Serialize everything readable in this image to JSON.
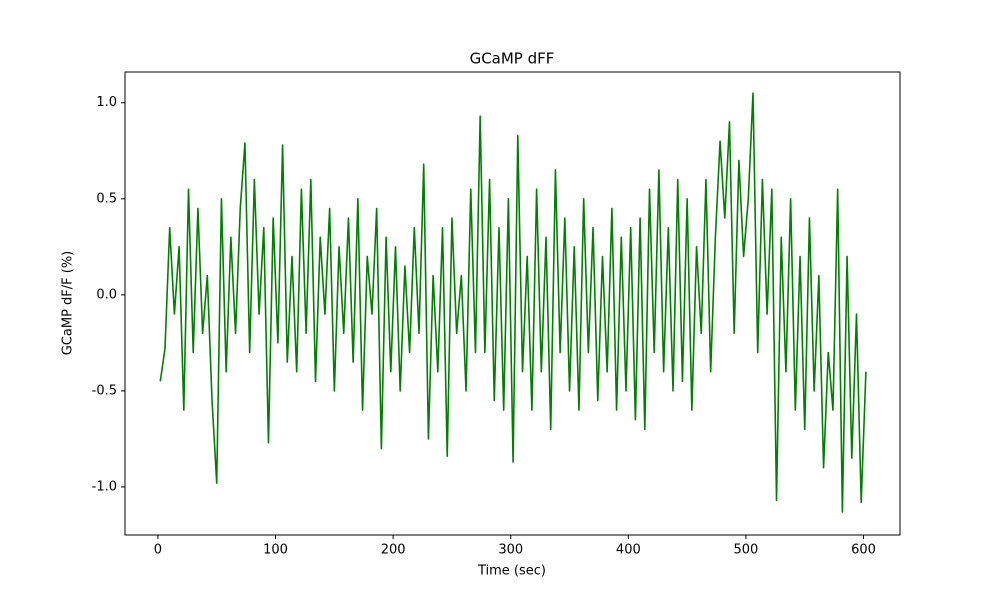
{
  "chart_data": {
    "type": "line",
    "title": "GCaMP dFF",
    "x_label": "Time (sec)",
    "y_label": "GCaMP dF/F (%)",
    "x": [
      2,
      6,
      10,
      14,
      18,
      22,
      26,
      30,
      34,
      38,
      42,
      46,
      50,
      54,
      58,
      62,
      66,
      70,
      74,
      78,
      82,
      86,
      90,
      94,
      98,
      102,
      106,
      110,
      114,
      118,
      122,
      126,
      130,
      134,
      138,
      142,
      146,
      150,
      154,
      158,
      162,
      166,
      170,
      174,
      178,
      182,
      186,
      190,
      194,
      198,
      202,
      206,
      210,
      214,
      218,
      222,
      226,
      230,
      234,
      238,
      242,
      246,
      250,
      254,
      258,
      262,
      266,
      270,
      274,
      278,
      282,
      286,
      290,
      294,
      298,
      302,
      306,
      310,
      314,
      318,
      322,
      326,
      330,
      334,
      338,
      342,
      346,
      350,
      354,
      358,
      362,
      366,
      370,
      374,
      378,
      382,
      386,
      390,
      394,
      398,
      402,
      406,
      410,
      414,
      418,
      422,
      426,
      430,
      434,
      438,
      442,
      446,
      450,
      454,
      458,
      462,
      466,
      470,
      474,
      478,
      482,
      486,
      490,
      494,
      498,
      502,
      506,
      510,
      514,
      518,
      522,
      526,
      530,
      534,
      538,
      542,
      546,
      550,
      554,
      558,
      562,
      566,
      570,
      574,
      578,
      582,
      586,
      590,
      594,
      598,
      602
    ],
    "series": [
      {
        "name": "GCaMP dFF",
        "color": "#008000",
        "values": [
          -0.45,
          -0.28,
          0.35,
          -0.1,
          0.25,
          -0.6,
          0.55,
          -0.3,
          0.45,
          -0.2,
          0.1,
          -0.55,
          -0.98,
          0.5,
          -0.4,
          0.3,
          -0.2,
          0.45,
          0.79,
          -0.3,
          0.6,
          -0.1,
          0.35,
          -0.77,
          0.4,
          -0.25,
          0.78,
          -0.35,
          0.2,
          -0.4,
          0.55,
          -0.2,
          0.6,
          -0.45,
          0.3,
          -0.1,
          0.45,
          -0.5,
          0.25,
          -0.2,
          0.4,
          -0.35,
          0.5,
          -0.6,
          0.2,
          -0.1,
          0.45,
          -0.8,
          0.3,
          -0.4,
          0.25,
          -0.5,
          0.15,
          -0.3,
          0.35,
          -0.2,
          0.68,
          -0.75,
          0.1,
          -0.4,
          0.35,
          -0.84,
          0.4,
          -0.2,
          0.1,
          -0.5,
          0.55,
          -0.3,
          0.93,
          -0.3,
          0.6,
          -0.55,
          0.35,
          -0.6,
          0.5,
          -0.87,
          0.83,
          -0.4,
          0.2,
          -0.6,
          0.55,
          -0.4,
          0.3,
          -0.7,
          0.65,
          -0.3,
          0.4,
          -0.5,
          0.25,
          -0.6,
          0.5,
          -0.3,
          0.35,
          -0.55,
          0.2,
          -0.4,
          0.45,
          -0.6,
          0.3,
          -0.5,
          0.35,
          -0.65,
          0.4,
          -0.7,
          0.55,
          -0.3,
          0.65,
          -0.4,
          0.35,
          -0.5,
          0.6,
          -0.45,
          0.5,
          -0.6,
          0.25,
          -0.2,
          0.6,
          -0.4,
          0.3,
          0.8,
          0.4,
          0.9,
          -0.2,
          0.7,
          0.2,
          0.5,
          1.05,
          -0.3,
          0.6,
          -0.1,
          0.55,
          -1.07,
          0.3,
          -0.4,
          0.5,
          -0.6,
          0.2,
          -0.7,
          0.4,
          -0.5,
          0.1,
          -0.9,
          -0.3,
          -0.6,
          0.55,
          -1.13,
          0.2,
          -0.85,
          -0.1,
          -1.08,
          -0.4
        ]
      }
    ],
    "xlim": [
      -28,
      631
    ],
    "ylim": [
      -1.25,
      1.16
    ],
    "xticks": [
      0,
      100,
      200,
      300,
      400,
      500,
      600
    ],
    "yticks": [
      {
        "value": -1.0,
        "label": "-1.0"
      },
      {
        "value": -0.5,
        "label": "-0.5"
      },
      {
        "value": 0,
        "label": "0.0"
      },
      {
        "value": 0.5,
        "label": "0.5"
      },
      {
        "value": 1.0,
        "label": "1.0"
      }
    ]
  }
}
